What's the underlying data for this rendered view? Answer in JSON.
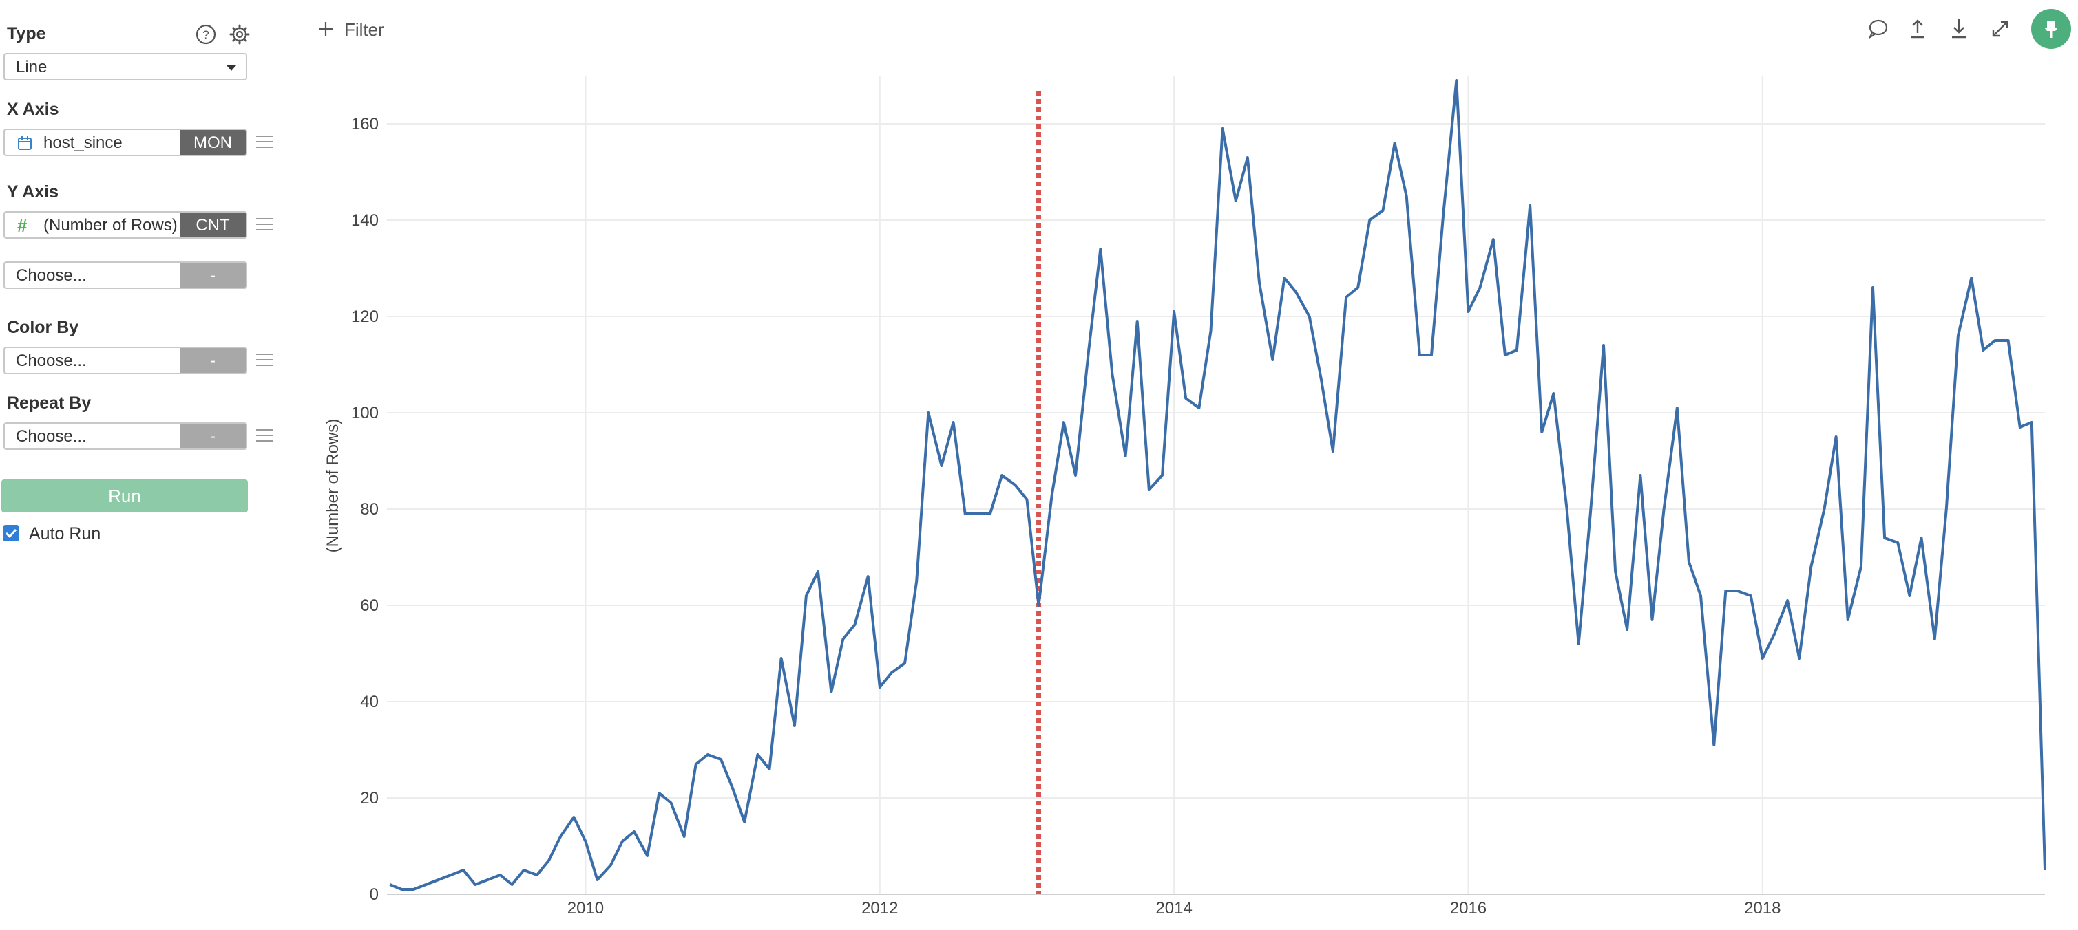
{
  "sidebar": {
    "type_label": "Type",
    "type_value": "Line",
    "x_axis_label": "X Axis",
    "x_field": "host_since",
    "x_agg": "MON",
    "y_axis_label": "Y Axis",
    "y_field": "(Number of Rows)",
    "y_agg": "CNT",
    "y2_field": "Choose...",
    "y2_agg": "-",
    "color_by_label": "Color By",
    "color_field": "Choose...",
    "color_agg": "-",
    "repeat_by_label": "Repeat By",
    "repeat_field": "Choose...",
    "repeat_agg": "-",
    "run_label": "Run",
    "auto_run_label": "Auto Run",
    "auto_run_checked": true
  },
  "toolbar": {
    "filter_label": "Filter",
    "icons": [
      "comment-icon",
      "upload-icon",
      "download-icon",
      "expand-icon",
      "pin-icon"
    ]
  },
  "colors": {
    "line": "#3b6ea8",
    "reference_line": "#d9534f",
    "run_button": "#8dcaa8",
    "pin_button": "#4caf7d",
    "tag_dark": "#666666",
    "tag_light": "#a8a8a8"
  },
  "chart_data": {
    "type": "line",
    "ylabel": "(Number of Rows)",
    "xlabel": "",
    "xlim": [
      2008.65,
      2019.92
    ],
    "ylim": [
      0,
      170
    ],
    "x_ticks": [
      2010,
      2012,
      2014,
      2016,
      2018
    ],
    "y_ticks": [
      0,
      20,
      40,
      60,
      80,
      100,
      120,
      140,
      160
    ],
    "grid": true,
    "reference_line_x": 2013.08,
    "series": [
      {
        "x": [
          2008.67,
          2008.75,
          2008.83,
          2009.17,
          2009.25,
          2009.42,
          2009.5,
          2009.58,
          2009.67,
          2009.75,
          2009.83,
          2009.92,
          2010.0,
          2010.08,
          2010.17,
          2010.25,
          2010.33,
          2010.42,
          2010.5,
          2010.58,
          2010.67,
          2010.75,
          2010.83,
          2010.92,
          2011.0,
          2011.08,
          2011.17,
          2011.25,
          2011.33,
          2011.42,
          2011.5,
          2011.58,
          2011.67,
          2011.75,
          2011.83,
          2011.92,
          2012.0,
          2012.08,
          2012.17,
          2012.25,
          2012.33,
          2012.42,
          2012.5,
          2012.58,
          2012.67,
          2012.75,
          2012.83,
          2012.92,
          2013.0,
          2013.08,
          2013.17,
          2013.25,
          2013.33,
          2013.42,
          2013.5,
          2013.58,
          2013.67,
          2013.75,
          2013.83,
          2013.92,
          2014.0,
          2014.08,
          2014.17,
          2014.25,
          2014.33,
          2014.42,
          2014.5,
          2014.58,
          2014.67,
          2014.75,
          2014.83,
          2014.92,
          2015.0,
          2015.08,
          2015.17,
          2015.25,
          2015.33,
          2015.42,
          2015.5,
          2015.58,
          2015.67,
          2015.75,
          2015.83,
          2015.92,
          2016.0,
          2016.08,
          2016.17,
          2016.25,
          2016.33,
          2016.42,
          2016.5,
          2016.58,
          2016.67,
          2016.75,
          2016.83,
          2016.92,
          2017.0,
          2017.08,
          2017.17,
          2017.25,
          2017.33,
          2017.42,
          2017.5,
          2017.58,
          2017.67,
          2017.75,
          2017.83,
          2017.92,
          2018.0,
          2018.08,
          2018.17,
          2018.25,
          2018.33,
          2018.42,
          2018.5,
          2018.58,
          2018.67,
          2018.75,
          2018.83,
          2018.92,
          2019.0,
          2019.08,
          2019.17,
          2019.25,
          2019.33,
          2019.42,
          2019.5,
          2019.58,
          2019.67,
          2019.75,
          2019.83,
          2019.92
        ],
        "y": [
          2,
          1,
          1,
          5,
          2,
          4,
          2,
          5,
          4,
          7,
          12,
          16,
          11,
          3,
          6,
          11,
          13,
          8,
          21,
          19,
          12,
          27,
          29,
          28,
          22,
          15,
          29,
          26,
          49,
          35,
          62,
          67,
          42,
          53,
          56,
          66,
          43,
          46,
          48,
          65,
          100,
          89,
          98,
          79,
          79,
          79,
          87,
          85,
          82,
          60,
          83,
          98,
          87,
          113,
          134,
          108,
          91,
          119,
          84,
          87,
          121,
          103,
          101,
          117,
          159,
          144,
          153,
          127,
          111,
          128,
          125,
          120,
          107,
          92,
          124,
          126,
          140,
          142,
          156,
          145,
          112,
          112,
          141,
          169,
          121,
          126,
          136,
          112,
          113,
          143,
          96,
          104,
          80,
          52,
          79,
          114,
          67,
          55,
          87,
          57,
          80,
          101,
          69,
          62,
          31,
          63,
          63,
          62,
          49,
          54,
          61,
          49,
          68,
          80,
          95,
          57,
          68,
          126,
          74,
          73,
          62,
          74,
          53,
          80,
          116,
          128,
          113,
          115,
          115,
          97,
          98,
          5
        ]
      }
    ]
  }
}
